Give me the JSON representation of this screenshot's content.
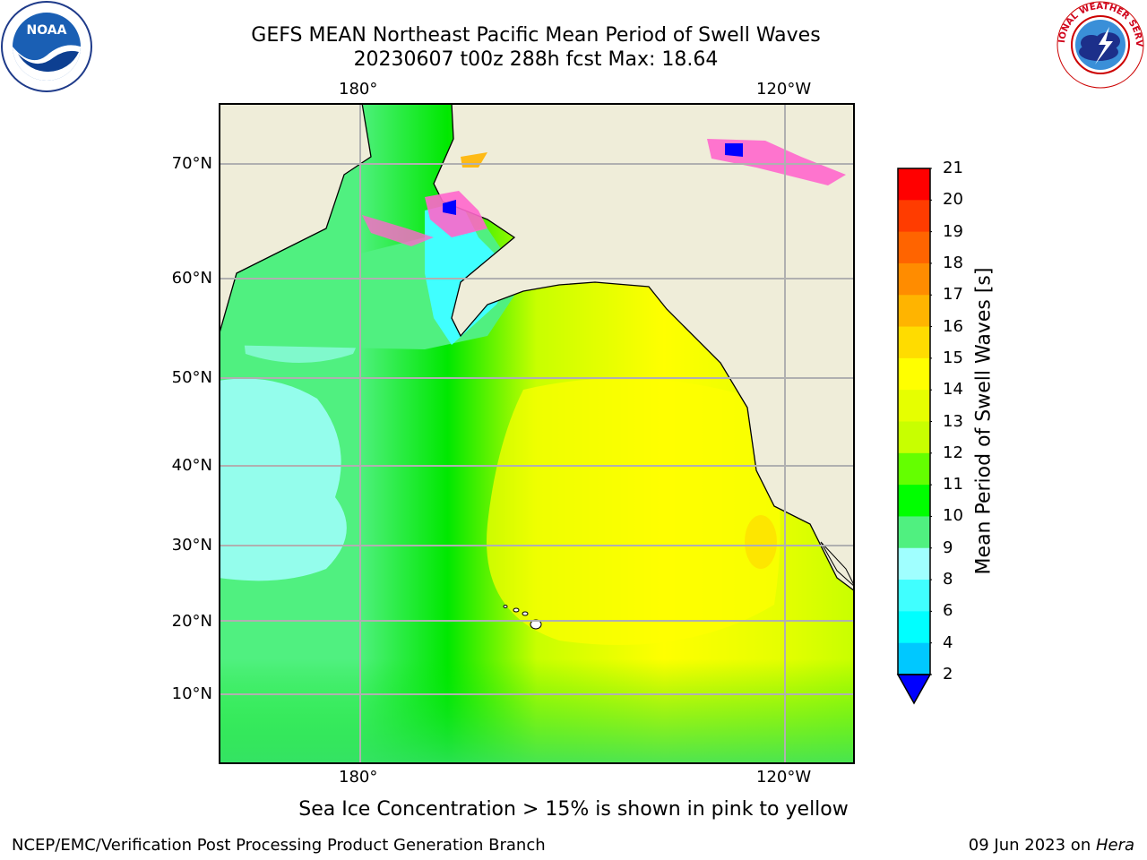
{
  "header": {
    "title_line1": "GEFS MEAN Northeast Pacific Mean Period of Swell Waves",
    "title_line2": "20230607 t00z 288h fcst   Max: 18.64"
  },
  "logos": {
    "left": "noaa-logo",
    "right": "nws-logo"
  },
  "map": {
    "lon_labels_top": [
      "180°",
      "120°W"
    ],
    "lon_labels_bottom": [
      "180°",
      "120°W"
    ],
    "lat_labels": [
      "70°N",
      "60°N",
      "50°N",
      "40°N",
      "30°N",
      "20°N",
      "10°N"
    ],
    "land_color": "#efedd9",
    "grid_color": "#b0b0b0"
  },
  "colorbar": {
    "label": "Mean Period of Swell Waves [s]",
    "ticks": [
      "21",
      "20",
      "19",
      "18",
      "17",
      "16",
      "15",
      "14",
      "13",
      "12",
      "11",
      "10",
      "9",
      "8",
      "6",
      "4",
      "2"
    ],
    "colors": [
      "#ff0000",
      "#ff3c00",
      "#ff6400",
      "#ff8c00",
      "#ffb400",
      "#ffdc00",
      "#ffff00",
      "#e6ff00",
      "#c8ff00",
      "#64ff00",
      "#00ff00",
      "#50f080",
      "#a0ffff",
      "#40ffff",
      "#00ffff",
      "#00c8ff",
      "#0064ff",
      "#0000ff"
    ]
  },
  "footer": {
    "note": "Sea Ice Concentration > 15% is shown in pink to yellow",
    "credit": "NCEP/EMC/Verification Post Processing Product Generation Branch",
    "date_prefix": "09 Jun 2023 on ",
    "date_machine": "Hera"
  }
}
